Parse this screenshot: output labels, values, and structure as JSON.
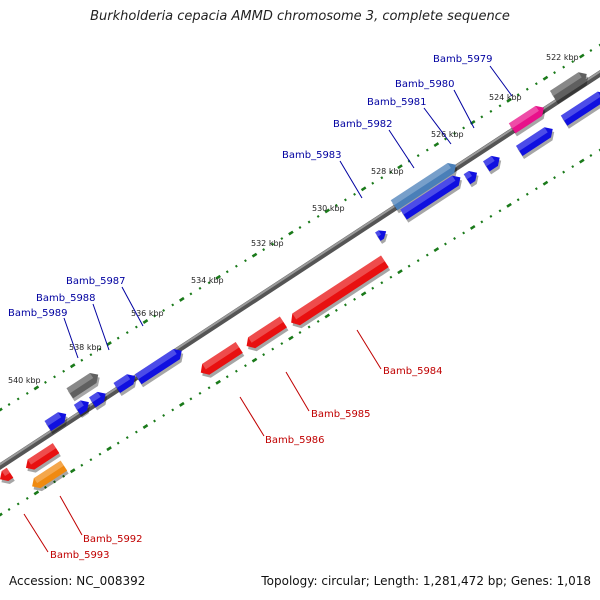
{
  "title": "Burkholderia cepacia AMMD chromosome 3, complete sequence",
  "footer": {
    "accession": "Accession: NC_008392",
    "summary": "Topology: circular; Length: 1,281,472 bp; Genes: 1,018"
  },
  "ticks": [
    "522 kbp",
    "524 kbp",
    "526 kbp",
    "528 kbp",
    "530 kbp",
    "532 kbp",
    "534 kbp",
    "536 kbp",
    "538 kbp",
    "540 kbp"
  ],
  "genes_top": [
    "Bamb_5979",
    "Bamb_5980",
    "Bamb_5981",
    "Bamb_5982",
    "Bamb_5983",
    "Bamb_5987",
    "Bamb_5988",
    "Bamb_5989"
  ],
  "genes_bottom": [
    "Bamb_5984",
    "Bamb_5985",
    "Bamb_5986",
    "Bamb_5992",
    "Bamb_5993"
  ],
  "colors": {
    "forward_cds": "#1010e0",
    "reverse_cds": "#e81010",
    "rna": "#606060",
    "highlight_pink": "#e8108a",
    "highlight_steel": "#4a7fb8",
    "highlight_orange": "#f08a10",
    "backbone": "#7a7a7a",
    "tick_marks": "#1a7a1a",
    "label_top": "#0000a0",
    "label_bottom": "#c00000"
  }
}
